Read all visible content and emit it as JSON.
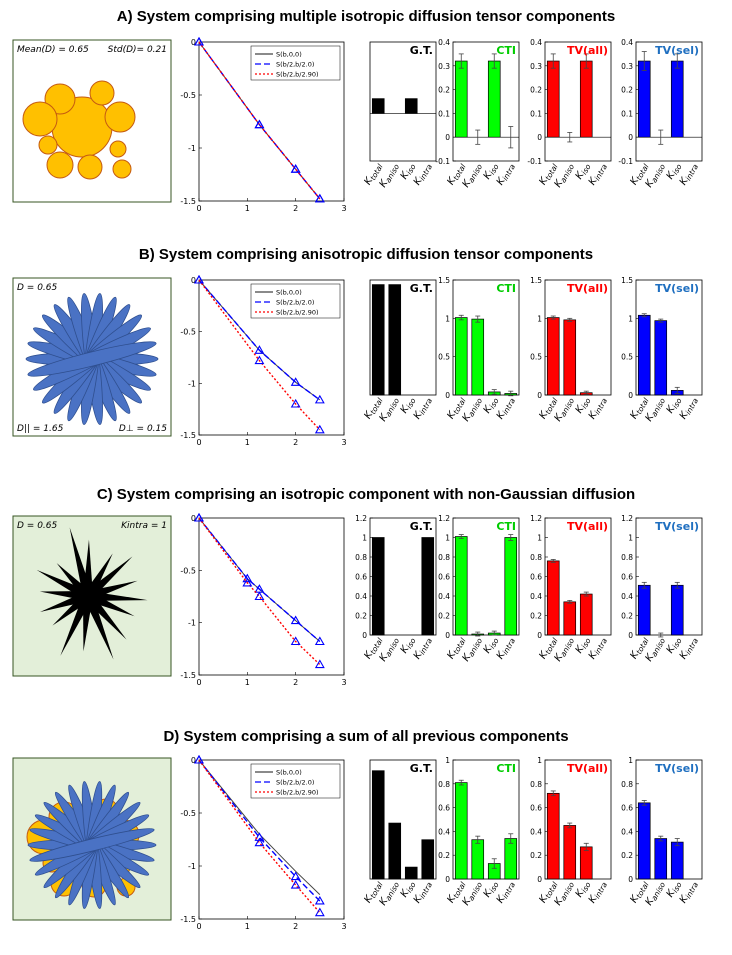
{
  "titles": [
    "A) System comprising multiple isotropic diffusion tensor components",
    "B) System comprising anisotropic diffusion tensor components",
    "C) System comprising an isotropic component with non-Gaussian diffusion",
    "D) System comprising a sum of all previous components"
  ],
  "illustrations": [
    {
      "labels": [
        {
          "text": "Mean(D) = 0.65",
          "pos": "tl"
        },
        {
          "text": "Std(D)= 0.21",
          "pos": "tr"
        }
      ],
      "bg": "#ffffff"
    },
    {
      "labels": [
        {
          "text": "D = 0.65",
          "pos": "tl"
        },
        {
          "text": "D|| = 1.65",
          "pos": "bl"
        },
        {
          "text": "D⊥ = 0.15",
          "pos": "br"
        }
      ],
      "bg": "#ffffff"
    },
    {
      "labels": [
        {
          "text": "D = 0.65",
          "pos": "tl"
        },
        {
          "text": "Kintra = 1",
          "pos": "tr"
        }
      ],
      "bg": "#e3efd9"
    },
    {
      "labels": [],
      "bg": "#e3efd9"
    }
  ],
  "colors": {
    "gt": "#000000",
    "cti": "#00ff00",
    "tvall": "#ff0000",
    "tvsel": "#0000ff",
    "cti_title": "#00cc00",
    "tvsel_title": "#1f6fc0",
    "curve_black": "#444444",
    "curve_blue": "#0000ff",
    "curve_red": "#ff0000",
    "sphere": "#ffc000",
    "sphere_edge": "#c55a11",
    "fiber": "#4a72c4"
  },
  "bar_categories": [
    "Ktotal",
    "Kaniso",
    "Kiso",
    "Kintra"
  ],
  "chart_data": [
    {
      "type": "line",
      "row": "A",
      "xlim": [
        0,
        3
      ],
      "ylim": [
        -1.5,
        0
      ],
      "xticks": [
        0,
        1,
        2,
        3
      ],
      "yticks": [
        0,
        -0.5,
        -1,
        -1.5
      ],
      "legend": [
        "S(b,0,0)",
        "S(b/2,b/2.0)",
        "S(b/2,b/2.90)"
      ],
      "legend_pos": "top-right",
      "series": [
        {
          "name": "S(b,0,0)",
          "x": [
            0,
            1.25,
            2,
            2.5
          ],
          "y": [
            0,
            -0.78,
            -1.2,
            -1.48
          ]
        },
        {
          "name": "S(b/2,b/2.0)",
          "x": [
            0,
            1.25,
            2,
            2.5
          ],
          "y": [
            0,
            -0.78,
            -1.2,
            -1.48
          ]
        },
        {
          "name": "S(b/2,b/2.90)",
          "x": [
            0,
            1.25,
            2,
            2.5
          ],
          "y": [
            0,
            -0.78,
            -1.2,
            -1.48
          ]
        }
      ]
    },
    {
      "type": "bar",
      "row": "A",
      "panel": "G.T.",
      "ylim": [
        -1,
        1.5
      ],
      "yticks": [],
      "values": [
        0.31,
        0,
        0.31,
        0
      ]
    },
    {
      "type": "bar",
      "row": "A",
      "panel": "CTI",
      "ylim": [
        -0.1,
        0.4
      ],
      "yticks": [
        0.4,
        0.3,
        0.2,
        0.1,
        0,
        -0.1
      ],
      "values": [
        0.32,
        0,
        0.32,
        0
      ],
      "errors": [
        0.03,
        0.03,
        0.03,
        0.045
      ]
    },
    {
      "type": "bar",
      "row": "A",
      "panel": "TV(all)",
      "ylim": [
        -0.1,
        0.4
      ],
      "yticks": [
        0.4,
        0.3,
        0.2,
        0.1,
        0,
        -0.1
      ],
      "values": [
        0.32,
        0,
        0.32
      ],
      "errors": [
        0.03,
        0.02,
        0.03
      ]
    },
    {
      "type": "bar",
      "row": "A",
      "panel": "TV(sel)",
      "ylim": [
        -0.1,
        0.4
      ],
      "yticks": [
        0.4,
        0.3,
        0.2,
        0.1,
        0,
        -0.1
      ],
      "values": [
        0.32,
        0,
        0.32
      ],
      "errors": [
        0.04,
        0.03,
        0.03
      ]
    },
    {
      "type": "line",
      "row": "B",
      "xlim": [
        0,
        3
      ],
      "ylim": [
        -1.5,
        0
      ],
      "xticks": [
        0,
        1,
        2,
        3
      ],
      "yticks": [
        0,
        -0.5,
        -1,
        -1.5
      ],
      "legend": [
        "S(b,0,0)",
        "S(b/2,b/2.0)",
        "S(b/2,b/2.90)"
      ],
      "legend_pos": "top-right",
      "series": [
        {
          "name": "S(b,0,0)",
          "x": [
            0,
            1.25,
            2,
            2.5
          ],
          "y": [
            0,
            -0.68,
            -0.99,
            -1.16
          ]
        },
        {
          "name": "S(b/2,b/2.0)",
          "x": [
            0,
            1.25,
            2,
            2.5
          ],
          "y": [
            0,
            -0.68,
            -0.99,
            -1.16
          ]
        },
        {
          "name": "S(b/2,b/2.90)",
          "x": [
            0,
            1.25,
            2,
            2.5
          ],
          "y": [
            0,
            -0.78,
            -1.2,
            -1.45
          ]
        }
      ]
    },
    {
      "type": "bar",
      "row": "B",
      "panel": "G.T.",
      "ylim": [
        0,
        1.5
      ],
      "yticks": [],
      "values": [
        1.44,
        1.44,
        0,
        0
      ]
    },
    {
      "type": "bar",
      "row": "B",
      "panel": "CTI",
      "ylim": [
        0,
        1.5
      ],
      "yticks": [
        1.5,
        1,
        0.5,
        0
      ],
      "values": [
        1.01,
        0.99,
        0.04,
        0.02
      ],
      "errors": [
        0.03,
        0.04,
        0.03,
        0.03
      ]
    },
    {
      "type": "bar",
      "row": "B",
      "panel": "TV(all)",
      "ylim": [
        0,
        1.5
      ],
      "yticks": [
        1.5,
        1,
        0.5,
        0
      ],
      "values": [
        1.01,
        0.98,
        0.03
      ],
      "errors": [
        0.02,
        0.02,
        0.02
      ]
    },
    {
      "type": "bar",
      "row": "B",
      "panel": "TV(sel)",
      "ylim": [
        0,
        1.5
      ],
      "yticks": [
        1.5,
        1,
        0.5,
        0
      ],
      "values": [
        1.04,
        0.97,
        0.06
      ],
      "errors": [
        0.02,
        0.02,
        0.04
      ]
    },
    {
      "type": "line",
      "row": "C",
      "xlim": [
        0,
        3
      ],
      "ylim": [
        -1.5,
        0
      ],
      "xticks": [
        0,
        1,
        2,
        3
      ],
      "yticks": [
        0,
        -0.5,
        -1,
        -1.5
      ],
      "legend": [],
      "legend_pos": "none",
      "series": [
        {
          "name": "S(b,0,0)",
          "x": [
            0,
            1,
            1.25,
            2,
            2.5
          ],
          "y": [
            0,
            -0.58,
            -0.68,
            -0.98,
            -1.18
          ]
        },
        {
          "name": "S(b/2,b/2.0)",
          "x": [
            0,
            1,
            1.25,
            2,
            2.5
          ],
          "y": [
            0,
            -0.58,
            -0.68,
            -0.98,
            -1.18
          ]
        },
        {
          "name": "S(b/2,b/2.90)",
          "x": [
            0,
            1,
            1.25,
            2,
            2.5
          ],
          "y": [
            0,
            -0.62,
            -0.75,
            -1.18,
            -1.4
          ]
        }
      ]
    },
    {
      "type": "bar",
      "row": "C",
      "panel": "G.T.",
      "ylim": [
        0,
        1.2
      ],
      "yticks": [
        1.2,
        1,
        0.8,
        0.6,
        0.4,
        0.2,
        0
      ],
      "values": [
        1,
        0,
        0,
        1
      ]
    },
    {
      "type": "bar",
      "row": "C",
      "panel": "CTI",
      "ylim": [
        0,
        1.2
      ],
      "yticks": [
        1.2,
        1,
        0.8,
        0.6,
        0.4,
        0.2,
        0
      ],
      "values": [
        1.01,
        0.01,
        0.02,
        1
      ],
      "errors": [
        0.02,
        0.02,
        0.02,
        0.03
      ]
    },
    {
      "type": "bar",
      "row": "C",
      "panel": "TV(all)",
      "ylim": [
        0,
        1.2
      ],
      "yticks": [
        1.2,
        1,
        0.8,
        0.6,
        0.4,
        0.2,
        0
      ],
      "values": [
        0.76,
        0.34,
        0.42
      ],
      "errors": [
        0.015,
        0.015,
        0.02
      ]
    },
    {
      "type": "bar",
      "row": "C",
      "panel": "TV(sel)",
      "ylim": [
        0,
        1.2
      ],
      "yticks": [
        1.2,
        1,
        0.8,
        0.6,
        0.4,
        0.2,
        0
      ],
      "values": [
        0.51,
        0,
        0.51
      ],
      "errors": [
        0.03,
        0.02,
        0.03
      ]
    },
    {
      "type": "line",
      "row": "D",
      "xlim": [
        0,
        3
      ],
      "ylim": [
        -1.5,
        0
      ],
      "xticks": [
        0,
        1,
        2,
        3
      ],
      "yticks": [
        0,
        -0.5,
        -1,
        -1.5
      ],
      "legend": [
        "S(b,0,0)",
        "S(b/2,b/2.0)",
        "S(b/2,b/2.90)"
      ],
      "legend_pos": "top-right",
      "series": [
        {
          "name": "S(b,0,0)",
          "x": [
            0,
            1.25,
            2,
            2.5
          ],
          "y": [
            0,
            -0.7,
            -1.05,
            -1.27
          ]
        },
        {
          "name": "S(b/2,b/2.0)",
          "x": [
            0,
            1.25,
            2,
            2.5
          ],
          "y": [
            0,
            -0.73,
            -1.1,
            -1.33
          ]
        },
        {
          "name": "S(b/2,b/2.90)",
          "x": [
            0,
            1.25,
            2,
            2.5
          ],
          "y": [
            0,
            -0.78,
            -1.18,
            -1.44
          ]
        }
      ]
    },
    {
      "type": "bar",
      "row": "D",
      "panel": "G.T.",
      "ylim": [
        0,
        1
      ],
      "yticks": [],
      "values": [
        0.91,
        0.47,
        0.1,
        0.33
      ]
    },
    {
      "type": "bar",
      "row": "D",
      "panel": "CTI",
      "ylim": [
        0,
        1
      ],
      "yticks": [
        1,
        0.8,
        0.6,
        0.4,
        0.2,
        0
      ],
      "values": [
        0.81,
        0.33,
        0.13,
        0.34
      ],
      "errors": [
        0.02,
        0.03,
        0.04,
        0.04
      ]
    },
    {
      "type": "bar",
      "row": "D",
      "panel": "TV(all)",
      "ylim": [
        0,
        1
      ],
      "yticks": [
        1,
        0.8,
        0.6,
        0.4,
        0.2,
        0
      ],
      "values": [
        0.72,
        0.45,
        0.27
      ],
      "errors": [
        0.02,
        0.02,
        0.03
      ]
    },
    {
      "type": "bar",
      "row": "D",
      "panel": "TV(sel)",
      "ylim": [
        0,
        1
      ],
      "yticks": [
        1,
        0.8,
        0.6,
        0.4,
        0.2,
        0
      ],
      "values": [
        0.64,
        0.34,
        0.31
      ],
      "errors": [
        0.02,
        0.02,
        0.03
      ]
    }
  ]
}
